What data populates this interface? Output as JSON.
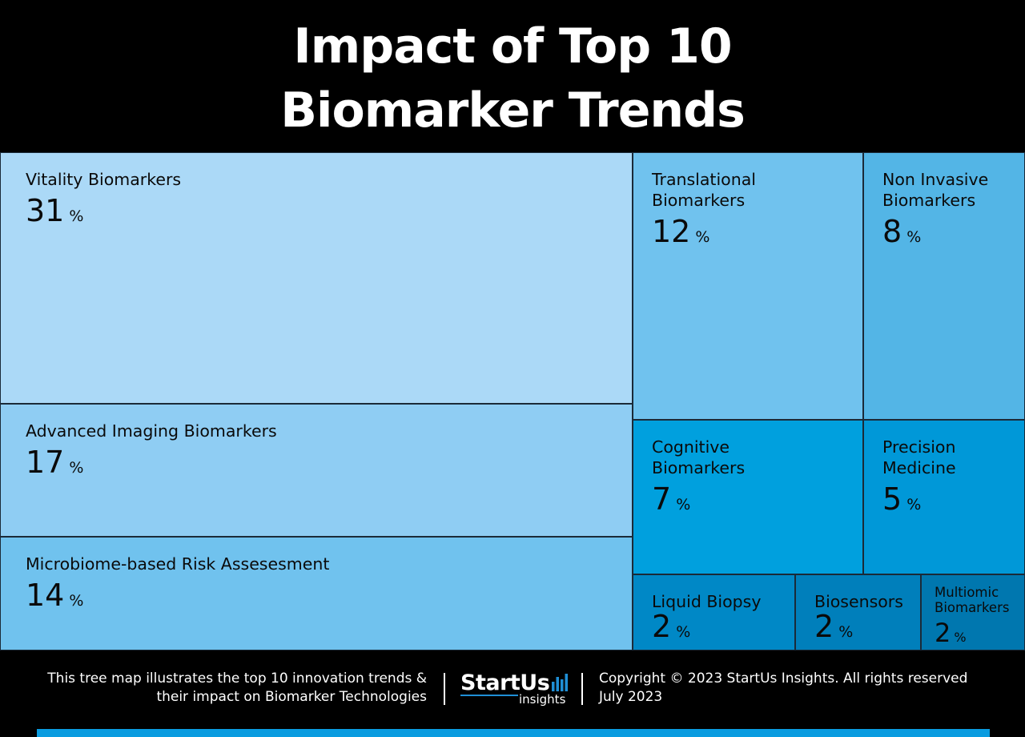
{
  "chart_data": {
    "type": "treemap",
    "title_lines": [
      "Impact of Top 10",
      "Biomarker Trends"
    ],
    "unit": "%",
    "items": [
      {
        "label": "Vitality Biomarkers",
        "value": 31,
        "color": "#abd9f7"
      },
      {
        "label": "Advanced Imaging Biomarkers",
        "value": 17,
        "color": "#8fcdf3"
      },
      {
        "label": "Microbiome-based Risk Assesesment",
        "value": 14,
        "color": "#70c2ee"
      },
      {
        "label": "Translational\nBiomarkers",
        "value": 12,
        "color": "#70c2ee"
      },
      {
        "label": "Non Invasive\nBiomarkers",
        "value": 8,
        "color": "#53b5e6"
      },
      {
        "label": "Cognitive\nBiomarkers",
        "value": 7,
        "color": "#00a0de"
      },
      {
        "label": "Precision\nMedicine",
        "value": 5,
        "color": "#0098d8"
      },
      {
        "label": "Liquid Biopsy",
        "value": 2,
        "color": "#0088c6"
      },
      {
        "label": "Biosensors",
        "value": 2,
        "color": "#007fbb"
      },
      {
        "label": "Multiomic\nBiomarkers",
        "value": 2,
        "color": "#0077af"
      }
    ]
  },
  "footer": {
    "description_lines": [
      "This tree map illustrates the top 10 innovation trends &",
      "their impact on Biomarker Technologies"
    ],
    "logo_brand": "StartUs",
    "logo_sub": "insights",
    "copyright": "Copyright © 2023 StartUs Insights. All rights reserved",
    "date": "July 2023"
  }
}
